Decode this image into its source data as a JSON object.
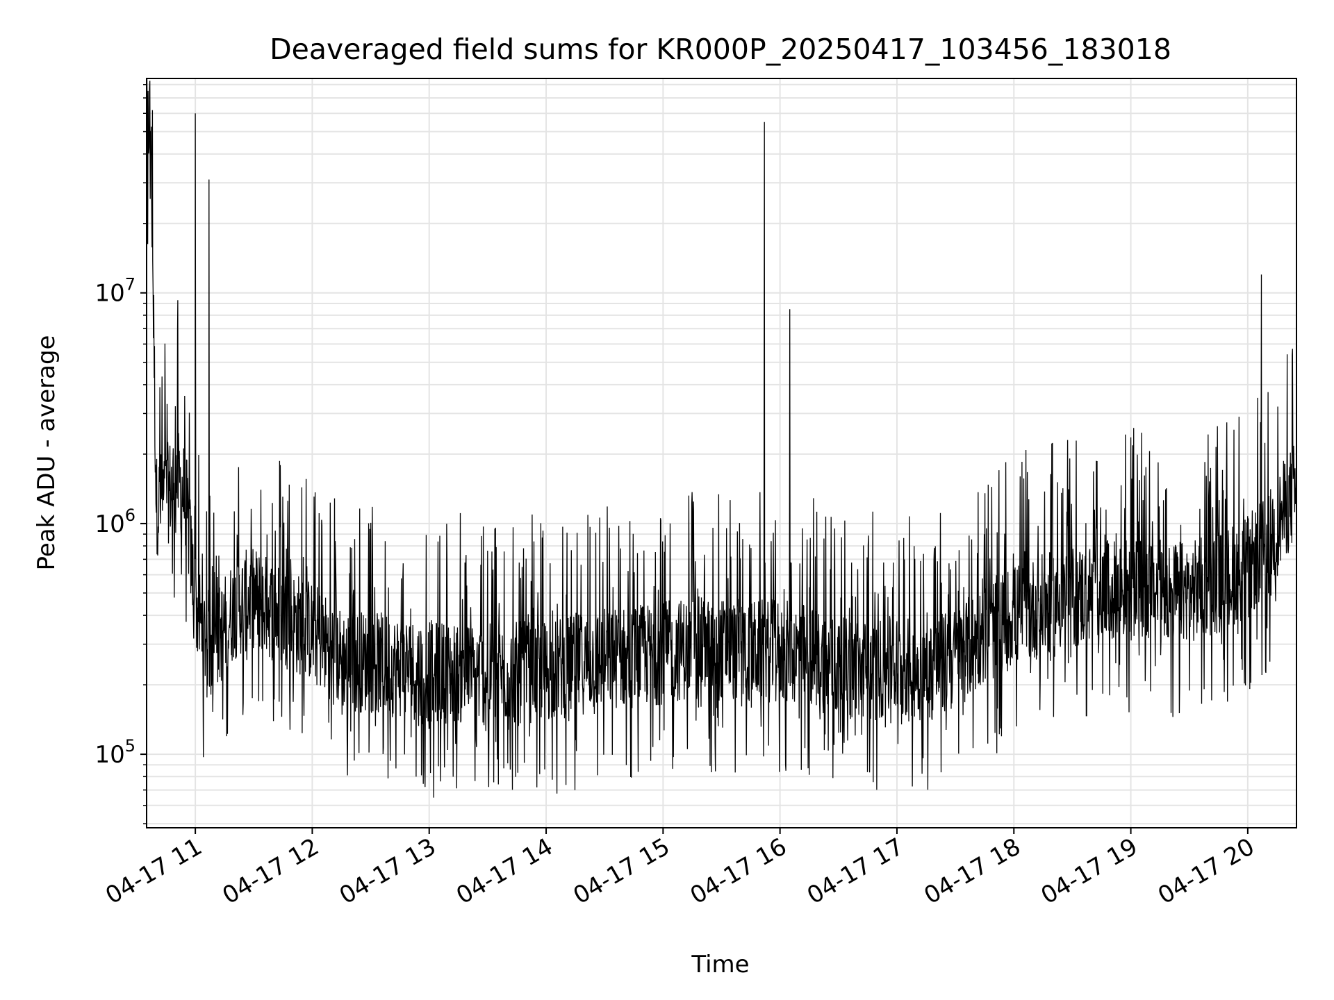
{
  "chart_data": {
    "type": "line",
    "title": "Deaveraged field sums for KR000P_20250417_103456_183018",
    "xlabel": "Time",
    "ylabel": "Peak ADU - average",
    "y_scale": "log",
    "ylim": [
      48000,
      85000000
    ],
    "xlim": [
      "04-17 10:35",
      "04-17 20:25"
    ],
    "grid": "major and minor, light gray",
    "line_color": "#000000",
    "x_ticks": [
      "04-17 11",
      "04-17 12",
      "04-17 13",
      "04-17 14",
      "04-17 15",
      "04-17 16",
      "04-17 17",
      "04-17 18",
      "04-17 19",
      "04-17 20"
    ],
    "y_ticks": [
      {
        "base": "10",
        "exp": "5",
        "value": 100000
      },
      {
        "base": "10",
        "exp": "6",
        "value": 1000000
      },
      {
        "base": "10",
        "exp": "7",
        "value": 10000000
      }
    ],
    "series": [
      {
        "x": [
          "04-17 10:35",
          "04-17 10:37",
          "04-17 10:40",
          "04-17 10:45",
          "04-17 10:50",
          "04-17 10:55",
          "04-17 11:00",
          "04-17 11:05",
          "04-17 11:10",
          "04-17 11:20",
          "04-17 11:30",
          "04-17 11:40",
          "04-17 11:50",
          "04-17 12:00",
          "04-17 12:15",
          "04-17 12:30",
          "04-17 12:45",
          "04-17 13:00",
          "04-17 13:15",
          "04-17 13:30",
          "04-17 13:45",
          "04-17 14:00",
          "04-17 14:15",
          "04-17 14:30",
          "04-17 14:45",
          "04-17 15:00",
          "04-17 15:15",
          "04-17 15:30",
          "04-17 15:45",
          "04-17 16:00",
          "04-17 16:15",
          "04-17 16:30",
          "04-17 16:45",
          "04-17 17:00",
          "04-17 17:15",
          "04-17 17:30",
          "04-17 17:45",
          "04-17 18:00",
          "04-17 18:15",
          "04-17 18:30",
          "04-17 18:45",
          "04-17 19:00",
          "04-17 19:15",
          "04-17 19:30",
          "04-17 19:45",
          "04-17 20:00",
          "04-17 20:10",
          "04-17 20:20",
          "04-17 20:25"
        ],
        "y": [
          50000000,
          60000000,
          1200000,
          1300000,
          1600000,
          1300000,
          450000,
          320000,
          300000,
          430000,
          480000,
          420000,
          380000,
          340000,
          260000,
          250000,
          240000,
          230000,
          225000,
          220000,
          225000,
          230000,
          245000,
          260000,
          265000,
          275000,
          290000,
          285000,
          280000,
          280000,
          270000,
          235000,
          230000,
          240000,
          230000,
          260000,
          330000,
          400000,
          440000,
          480000,
          500000,
          520000,
          510000,
          500000,
          560000,
          650000,
          800000,
          1200000,
          1400000
        ]
      }
    ],
    "spikes": [
      {
        "x": "04-17 10:38",
        "y": 62000000
      },
      {
        "x": "04-17 10:51",
        "y": 9300000
      },
      {
        "x": "04-17 11:00",
        "y": 60000000
      },
      {
        "x": "04-17 11:07",
        "y": 31000000
      },
      {
        "x": "04-17 15:52",
        "y": 55000000
      },
      {
        "x": "04-17 16:05",
        "y": 8500000
      },
      {
        "x": "04-17 20:07",
        "y": 12000000
      }
    ]
  }
}
